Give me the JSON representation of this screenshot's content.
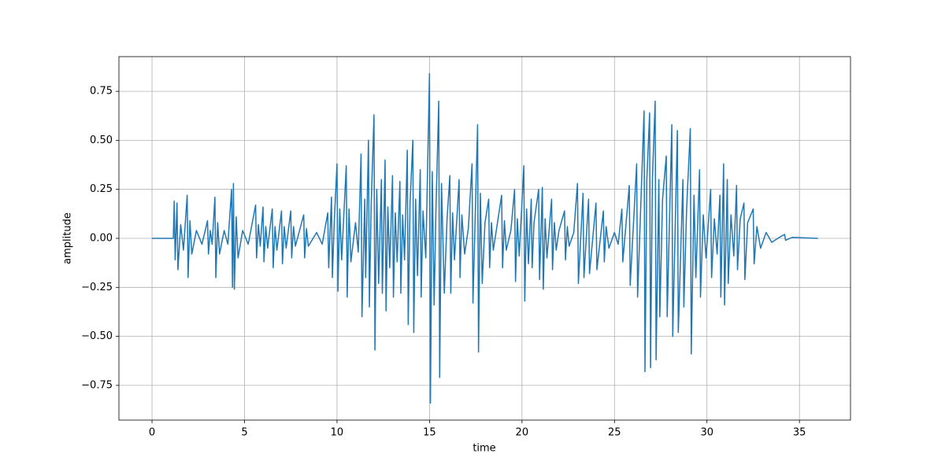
{
  "chart_data": {
    "type": "line",
    "xlabel": "time",
    "ylabel": "amplitude",
    "color": "#1f77b4",
    "grid": true,
    "xlim": [
      -1.79,
      37.76
    ],
    "ylim": [
      -0.927,
      0.927
    ],
    "xticks": [
      0,
      5,
      10,
      15,
      20,
      25,
      30,
      35
    ],
    "yticks": [
      {
        "value": -0.75,
        "label": "−0.75"
      },
      {
        "value": -0.5,
        "label": "−0.50"
      },
      {
        "value": -0.25,
        "label": "−0.25"
      },
      {
        "value": 0,
        "label": "0.00"
      },
      {
        "value": 0.25,
        "label": "0.25"
      },
      {
        "value": 0.5,
        "label": "0.50"
      },
      {
        "value": 0.75,
        "label": "0.75"
      }
    ],
    "x": [
      0,
      1.15,
      1.2,
      1.25,
      1.35,
      1.4,
      1.55,
      1.7,
      1.9,
      1.95,
      2.05,
      2.15,
      2.4,
      2.7,
      3.0,
      3.05,
      3.15,
      3.25,
      3.4,
      3.45,
      3.55,
      3.65,
      3.9,
      4.1,
      4.3,
      4.35,
      4.4,
      4.45,
      4.55,
      4.65,
      4.9,
      5.2,
      5.6,
      5.65,
      5.75,
      5.85,
      6.0,
      6.05,
      6.15,
      6.25,
      6.5,
      6.55,
      6.65,
      6.75,
      7.0,
      7.05,
      7.15,
      7.25,
      7.5,
      7.55,
      7.65,
      7.75,
      8.2,
      8.25,
      8.35,
      8.45,
      8.9,
      9.2,
      9.5,
      9.55,
      9.7,
      9.75,
      9.85,
      10.0,
      10.05,
      10.15,
      10.25,
      10.5,
      10.55,
      10.65,
      10.75,
      11.0,
      11.15,
      11.3,
      11.35,
      11.5,
      11.55,
      11.7,
      11.75,
      11.85,
      12.0,
      12.05,
      12.15,
      12.25,
      12.4,
      12.45,
      12.6,
      12.65,
      12.75,
      12.85,
      13.0,
      13.05,
      13.15,
      13.25,
      13.4,
      13.45,
      13.55,
      13.65,
      13.8,
      13.85,
      13.95,
      14.1,
      14.15,
      14.25,
      14.35,
      14.5,
      14.55,
      14.65,
      14.8,
      15.0,
      15.05,
      15.15,
      15.25,
      15.35,
      15.5,
      15.55,
      15.65,
      15.8,
      15.95,
      16.1,
      16.15,
      16.25,
      16.35,
      16.6,
      16.65,
      16.75,
      16.9,
      17.1,
      17.3,
      17.35,
      17.6,
      17.65,
      17.75,
      17.85,
      18.0,
      18.2,
      18.25,
      18.35,
      18.45,
      18.9,
      18.95,
      19.05,
      19.15,
      19.4,
      19.6,
      19.65,
      19.75,
      19.85,
      20.1,
      20.15,
      20.25,
      20.35,
      20.5,
      20.55,
      20.65,
      20.9,
      20.95,
      21.1,
      21.15,
      21.25,
      21.35,
      21.6,
      21.65,
      21.75,
      21.85,
      22.0,
      22.3,
      22.35,
      22.45,
      22.55,
      22.8,
      23.0,
      23.05,
      23.3,
      23.35,
      23.6,
      23.65,
      24.0,
      24.05,
      24.4,
      24.45,
      24.55,
      24.7,
      25.0,
      25.2,
      25.4,
      25.45,
      25.8,
      25.85,
      26.2,
      26.25,
      26.6,
      26.65,
      26.75,
      26.9,
      26.95,
      27.05,
      27.2,
      27.25,
      27.4,
      27.45,
      27.6,
      27.8,
      27.85,
      28.1,
      28.15,
      28.4,
      28.45,
      28.7,
      28.75,
      28.9,
      29.1,
      29.15,
      29.3,
      29.4,
      29.6,
      29.65,
      29.8,
      29.95,
      30.2,
      30.25,
      30.4,
      30.55,
      30.7,
      30.75,
      30.9,
      30.95,
      31.1,
      31.15,
      31.3,
      31.45,
      31.6,
      31.65,
      31.8,
      32.0,
      32.05,
      32.2,
      32.5,
      32.55,
      32.7,
      32.9,
      33.2,
      33.5,
      34.0,
      34.2,
      34.25,
      34.6,
      36.0
    ],
    "values": [
      0,
      0,
      0.19,
      -0.11,
      0.18,
      -0.16,
      0.07,
      -0.06,
      0.22,
      -0.2,
      0.09,
      -0.08,
      0.04,
      -0.03,
      0.09,
      -0.08,
      0.04,
      -0.03,
      0.21,
      -0.2,
      0.08,
      -0.08,
      0.04,
      -0.03,
      0.25,
      -0.25,
      0.28,
      -0.26,
      0.11,
      -0.1,
      0.04,
      -0.03,
      0.17,
      -0.1,
      0.07,
      -0.04,
      0.16,
      -0.12,
      0.06,
      -0.05,
      0.15,
      -0.15,
      0.06,
      -0.06,
      0.14,
      -0.13,
      0.06,
      -0.05,
      0.14,
      -0.1,
      0.06,
      -0.04,
      0.12,
      -0.1,
      0.05,
      -0.04,
      0.03,
      -0.03,
      0.13,
      -0.15,
      0.21,
      -0.2,
      0.08,
      0.38,
      -0.27,
      0.15,
      -0.11,
      0.37,
      -0.3,
      0.15,
      -0.12,
      0.08,
      -0.07,
      0.43,
      -0.4,
      0.2,
      -0.2,
      0.5,
      -0.35,
      0.18,
      0.63,
      -0.57,
      0.25,
      -0.23,
      0.3,
      -0.28,
      0.4,
      -0.37,
      0.16,
      -0.15,
      0.32,
      -0.3,
      0.13,
      -0.12,
      0.29,
      -0.28,
      0.12,
      -0.11,
      0.45,
      -0.44,
      0.18,
      0.5,
      -0.48,
      0.2,
      -0.19,
      0.35,
      -0.3,
      0.14,
      -0.1,
      0.84,
      -0.84,
      0.34,
      -0.34,
      0.15,
      0.7,
      -0.71,
      0.28,
      -0.28,
      0.1,
      0.32,
      -0.28,
      0.13,
      -0.11,
      0.3,
      -0.2,
      0.12,
      -0.08,
      0.05,
      0.38,
      -0.33,
      0.58,
      -0.58,
      0.23,
      -0.23,
      0.08,
      0.2,
      -0.15,
      0.08,
      -0.06,
      0.22,
      -0.15,
      0.09,
      -0.06,
      0.04,
      0.25,
      -0.22,
      0.1,
      -0.09,
      0.37,
      -0.32,
      0.15,
      -0.13,
      0.2,
      -0.15,
      0.08,
      0.25,
      -0.21,
      0.26,
      -0.26,
      0.1,
      -0.1,
      0.2,
      -0.16,
      0.08,
      -0.06,
      0.04,
      0.14,
      -0.11,
      0.06,
      -0.04,
      0.03,
      0.28,
      -0.23,
      0.23,
      -0.2,
      0.2,
      -0.18,
      0.18,
      -0.16,
      0.14,
      -0.12,
      0.06,
      -0.05,
      0.03,
      -0.03,
      0.15,
      -0.12,
      0.27,
      -0.24,
      0.38,
      -0.3,
      0.65,
      -0.68,
      0.3,
      0.64,
      -0.66,
      0.3,
      0.7,
      -0.62,
      0.3,
      -0.4,
      0.2,
      0.42,
      -0.4,
      0.58,
      -0.5,
      0.55,
      -0.48,
      0.3,
      -0.35,
      0.15,
      0.56,
      -0.59,
      0.22,
      -0.2,
      0.35,
      -0.3,
      0.12,
      -0.1,
      0.25,
      -0.2,
      0.1,
      -0.08,
      0.22,
      -0.3,
      0.38,
      -0.34,
      0.3,
      -0.23,
      0.12,
      -0.09,
      0.27,
      -0.16,
      0.1,
      0.18,
      -0.21,
      0.08,
      0.15,
      -0.13,
      0.06,
      -0.05,
      0.03,
      -0.02,
      0.01,
      0.02,
      -0.01,
      0.005,
      0
    ]
  }
}
